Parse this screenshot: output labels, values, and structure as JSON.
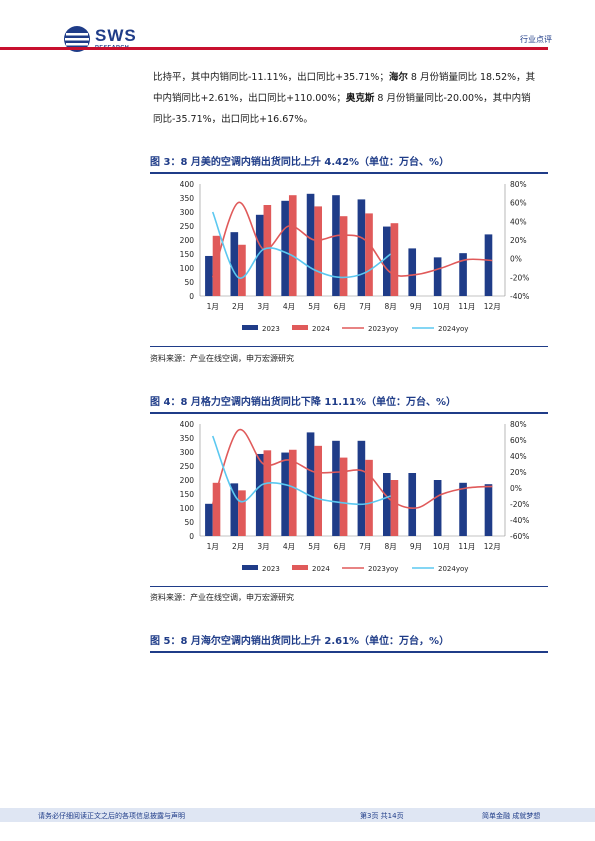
{
  "header": {
    "logo_text": "SWS",
    "logo_sub": "RESEARCH",
    "category": "行业点评"
  },
  "paragraph": {
    "line1_a": "比持平，其中内销同比-11.11%，出口同比+35.71%；",
    "line1_b": "海尔",
    "line1_c": " 8 月份销量同比 18.52%，其",
    "line2_a": "中内销同比+2.61%，出口同比+110.00%；",
    "line2_b": "奥克斯",
    "line2_c": " 8 月份销量同比-20.00%，其中内销",
    "line3": "同比-35.71%，出口同比+16.67%。"
  },
  "fig3": {
    "title": "图 3：8 月美的空调内销出货同比上升 4.42%（单位：万台、%）",
    "source": "资料来源：产业在线空调，申万宏源研究"
  },
  "fig4": {
    "title": "图 4：8 月格力空调内销出货同比下降 11.11%（单位：万台、%）",
    "source": "资料来源：产业在线空调，申万宏源研究"
  },
  "fig5": {
    "title": "图 5：8 月海尔空调内销出货同比上升 2.61%（单位：万台，%）"
  },
  "footer": {
    "disclaimer": "请务必仔细阅读正文之后的各项信息披露与声明",
    "page": "第3页 共14页",
    "slogan": "简单金融 成就梦想"
  },
  "colors": {
    "s2023": "#1f3c88",
    "s2024": "#e05a5a",
    "yoy2023": "#e05a5a",
    "yoy2024": "#5bc8f0"
  },
  "chart_data": [
    {
      "type": "bar",
      "categories": [
        "1月",
        "2月",
        "3月",
        "4月",
        "5月",
        "6月",
        "7月",
        "8月",
        "9月",
        "10月",
        "11月",
        "12月"
      ],
      "ylim": [
        0,
        400
      ],
      "y2lim": [
        -40,
        80
      ],
      "yticks": [
        "400",
        "350",
        "300",
        "250",
        "200",
        "150",
        "100",
        "50",
        "0"
      ],
      "y2ticks": [
        "80%",
        "60%",
        "40%",
        "20%",
        "0%",
        "-20%",
        "-40%"
      ],
      "series": [
        {
          "name": "2023",
          "axis": "left",
          "values": [
            143,
            228,
            290,
            340,
            365,
            360,
            345,
            248,
            170,
            138,
            153,
            220
          ]
        },
        {
          "name": "2024",
          "axis": "left",
          "values": [
            215,
            183,
            325,
            360,
            320,
            285,
            295,
            260,
            null,
            null,
            null,
            null
          ]
        },
        {
          "name": "2023yoy",
          "axis": "right",
          "values": [
            -20,
            60,
            10,
            35,
            20,
            25,
            20,
            -15,
            -17,
            -10,
            -1,
            -2
          ]
        },
        {
          "name": "2024yoy",
          "axis": "right",
          "values": [
            50,
            -20,
            10,
            5,
            -12,
            -20,
            -15,
            5,
            null,
            null,
            null,
            null
          ]
        }
      ]
    },
    {
      "type": "bar",
      "categories": [
        "1月",
        "2月",
        "3月",
        "4月",
        "5月",
        "6月",
        "7月",
        "8月",
        "9月",
        "10月",
        "11月",
        "12月"
      ],
      "ylim": [
        0,
        400
      ],
      "y2lim": [
        -60,
        80
      ],
      "yticks": [
        "400",
        "350",
        "300",
        "250",
        "200",
        "150",
        "100",
        "50",
        "0"
      ],
      "y2ticks": [
        "80%",
        "60%",
        "40%",
        "20%",
        "0%",
        "-20%",
        "-40%",
        "-60%"
      ],
      "series": [
        {
          "name": "2023",
          "axis": "left",
          "values": [
            115,
            188,
            293,
            298,
            370,
            340,
            340,
            225,
            225,
            200,
            190,
            185
          ]
        },
        {
          "name": "2024",
          "axis": "left",
          "values": [
            190,
            163,
            306,
            308,
            322,
            280,
            272,
            200,
            null,
            null,
            null,
            null
          ]
        },
        {
          "name": "2023yoy",
          "axis": "right",
          "values": [
            -20,
            72,
            30,
            35,
            20,
            20,
            20,
            -15,
            -25,
            -8,
            0,
            2
          ]
        },
        {
          "name": "2024yoy",
          "axis": "right",
          "values": [
            65,
            -15,
            5,
            3,
            -12,
            -18,
            -20,
            -10,
            null,
            null,
            null,
            null
          ]
        }
      ]
    }
  ]
}
